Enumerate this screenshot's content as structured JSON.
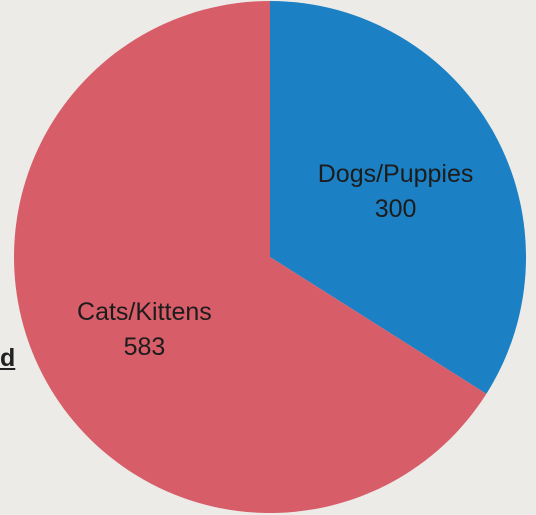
{
  "background": {
    "partial_text": "d"
  },
  "chart_data": {
    "type": "pie",
    "start_angle_deg": 0,
    "direction": "clockwise",
    "slices": [
      {
        "label": "Dogs/Puppies",
        "value": 300,
        "color": "#1b80c4"
      },
      {
        "label": "Cats/Kittens",
        "value": 583,
        "color": "#d75e69"
      }
    ],
    "title": "",
    "legend": "none",
    "data_labels": "inside"
  }
}
